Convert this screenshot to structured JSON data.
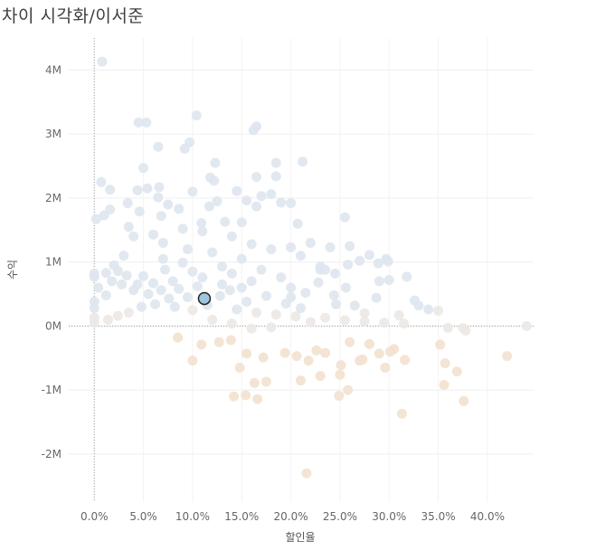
{
  "page": {
    "title": "차이 시각화/이서준"
  },
  "chart_data": {
    "type": "scatter",
    "title": "차이 시각화/이서준",
    "xlabel": "할인율",
    "ylabel": "수익",
    "xlim": [
      -0.026,
      0.447
    ],
    "ylim": [
      -2750000,
      4500000
    ],
    "x_ticks": [
      {
        "value": 0.0,
        "label": "0.0%"
      },
      {
        "value": 0.05,
        "label": "5.0%"
      },
      {
        "value": 0.1,
        "label": "10.0%"
      },
      {
        "value": 0.15,
        "label": "15.0%"
      },
      {
        "value": 0.2,
        "label": "20.0%"
      },
      {
        "value": 0.25,
        "label": "25.0%"
      },
      {
        "value": 0.3,
        "label": "30.0%"
      },
      {
        "value": 0.35,
        "label": "35.0%"
      },
      {
        "value": 0.4,
        "label": "40.0%"
      }
    ],
    "y_ticks": [
      {
        "value": 4000000,
        "label": "4M"
      },
      {
        "value": 3000000,
        "label": "3M"
      },
      {
        "value": 2000000,
        "label": "2M"
      },
      {
        "value": 1000000,
        "label": "1M"
      },
      {
        "value": 0,
        "label": "0M"
      },
      {
        "value": -1000000,
        "label": "-1M"
      },
      {
        "value": -2000000,
        "label": "-2M"
      }
    ],
    "grid": true,
    "reference_lines": {
      "x": 0,
      "y": 0
    },
    "colors": {
      "positive": "#dfe6ee",
      "neutral": "#ece8e4",
      "negative": "#f3e1cf",
      "highlight_fill": "#9fc5df",
      "highlight_stroke": "#222222"
    },
    "highlight": {
      "x": 0.112,
      "y": 430000
    },
    "points": [
      [
        0.008,
        4130000
      ],
      [
        0.104,
        3290000
      ],
      [
        0.045,
        3180000
      ],
      [
        0.053,
        3180000
      ],
      [
        0.165,
        3120000
      ],
      [
        0.162,
        3060000
      ],
      [
        0.097,
        2870000
      ],
      [
        0.065,
        2800000
      ],
      [
        0.092,
        2770000
      ],
      [
        0.212,
        2570000
      ],
      [
        0.123,
        2550000
      ],
      [
        0.185,
        2550000
      ],
      [
        0.05,
        2470000
      ],
      [
        0.118,
        2320000
      ],
      [
        0.165,
        2330000
      ],
      [
        0.185,
        2340000
      ],
      [
        0.122,
        2270000
      ],
      [
        0.007,
        2250000
      ],
      [
        0.016,
        2130000
      ],
      [
        0.044,
        2120000
      ],
      [
        0.054,
        2150000
      ],
      [
        0.066,
        2170000
      ],
      [
        0.1,
        2100000
      ],
      [
        0.145,
        2110000
      ],
      [
        0.17,
        2030000
      ],
      [
        0.18,
        2060000
      ],
      [
        0.065,
        2010000
      ],
      [
        0.034,
        1920000
      ],
      [
        0.075,
        1900000
      ],
      [
        0.125,
        1950000
      ],
      [
        0.155,
        1960000
      ],
      [
        0.19,
        1930000
      ],
      [
        0.2,
        1920000
      ],
      [
        0.01,
        1730000
      ],
      [
        0.016,
        1820000
      ],
      [
        0.046,
        1790000
      ],
      [
        0.086,
        1830000
      ],
      [
        0.117,
        1870000
      ],
      [
        0.165,
        1870000
      ],
      [
        0.035,
        1550000
      ],
      [
        0.002,
        1670000
      ],
      [
        0.068,
        1720000
      ],
      [
        0.255,
        1700000
      ],
      [
        0.207,
        1600000
      ],
      [
        0.109,
        1610000
      ],
      [
        0.133,
        1630000
      ],
      [
        0.15,
        1620000
      ],
      [
        0.24,
        1230000
      ],
      [
        0.26,
        1250000
      ],
      [
        0.28,
        1110000
      ],
      [
        0.297,
        1050000
      ],
      [
        0.27,
        1020000
      ],
      [
        0.299,
        1010000
      ],
      [
        0.258,
        960000
      ],
      [
        0.289,
        980000
      ],
      [
        0.23,
        930000
      ],
      [
        0.235,
        880000
      ],
      [
        0.3,
        720000
      ],
      [
        0.318,
        770000
      ],
      [
        0.29,
        700000
      ],
      [
        0.326,
        400000
      ],
      [
        0.287,
        440000
      ],
      [
        0.244,
        480000
      ],
      [
        0.33,
        320000
      ],
      [
        0.34,
        260000
      ],
      [
        0.35,
        240000
      ],
      [
        0.31,
        170000
      ],
      [
        0.275,
        200000
      ],
      [
        0.256,
        600000
      ],
      [
        0.21,
        1100000
      ],
      [
        0.22,
        1300000
      ],
      [
        0.18,
        1200000
      ],
      [
        0.12,
        1150000
      ],
      [
        0.095,
        1200000
      ],
      [
        0.07,
        1300000
      ],
      [
        0.03,
        1100000
      ],
      [
        0.02,
        950000
      ],
      [
        0.0,
        820000
      ],
      [
        0.0,
        770000
      ],
      [
        0.0,
        380000
      ],
      [
        0.0,
        280000
      ],
      [
        0.0,
        130000
      ],
      [
        0.0,
        50000
      ],
      [
        0.004,
        600000
      ],
      [
        0.012,
        480000
      ],
      [
        0.018,
        700000
      ],
      [
        0.028,
        650000
      ],
      [
        0.04,
        560000
      ],
      [
        0.05,
        780000
      ],
      [
        0.06,
        670000
      ],
      [
        0.072,
        880000
      ],
      [
        0.08,
        700000
      ],
      [
        0.09,
        990000
      ],
      [
        0.1,
        850000
      ],
      [
        0.11,
        760000
      ],
      [
        0.13,
        930000
      ],
      [
        0.14,
        820000
      ],
      [
        0.15,
        1050000
      ],
      [
        0.16,
        700000
      ],
      [
        0.17,
        880000
      ],
      [
        0.19,
        760000
      ],
      [
        0.2,
        600000
      ],
      [
        0.215,
        520000
      ],
      [
        0.228,
        680000
      ],
      [
        0.246,
        340000
      ],
      [
        0.265,
        320000
      ],
      [
        0.195,
        350000
      ],
      [
        0.175,
        470000
      ],
      [
        0.155,
        380000
      ],
      [
        0.138,
        560000
      ],
      [
        0.128,
        470000
      ],
      [
        0.086,
        580000
      ],
      [
        0.076,
        430000
      ],
      [
        0.062,
        340000
      ],
      [
        0.048,
        300000
      ],
      [
        0.035,
        210000
      ],
      [
        0.024,
        160000
      ],
      [
        0.014,
        100000
      ],
      [
        0.082,
        300000
      ],
      [
        0.1,
        250000
      ],
      [
        0.115,
        330000
      ],
      [
        0.145,
        260000
      ],
      [
        0.165,
        210000
      ],
      [
        0.185,
        180000
      ],
      [
        0.205,
        150000
      ],
      [
        0.235,
        130000
      ],
      [
        0.255,
        90000
      ],
      [
        0.275,
        70000
      ],
      [
        0.295,
        50000
      ],
      [
        0.315,
        40000
      ],
      [
        0.36,
        -30000
      ],
      [
        0.375,
        -30000
      ],
      [
        0.378,
        -70000
      ],
      [
        0.44,
        0
      ],
      [
        0.28,
        -280000
      ],
      [
        0.26,
        -250000
      ],
      [
        0.305,
        -360000
      ],
      [
        0.29,
        -430000
      ],
      [
        0.316,
        -530000
      ],
      [
        0.301,
        -400000
      ],
      [
        0.273,
        -520000
      ],
      [
        0.251,
        -610000
      ],
      [
        0.235,
        -420000
      ],
      [
        0.226,
        -380000
      ],
      [
        0.218,
        -540000
      ],
      [
        0.206,
        -470000
      ],
      [
        0.194,
        -420000
      ],
      [
        0.172,
        -490000
      ],
      [
        0.155,
        -430000
      ],
      [
        0.139,
        -220000
      ],
      [
        0.127,
        -250000
      ],
      [
        0.109,
        -290000
      ],
      [
        0.1,
        -540000
      ],
      [
        0.085,
        -180000
      ],
      [
        0.148,
        -650000
      ],
      [
        0.175,
        -870000
      ],
      [
        0.163,
        -890000
      ],
      [
        0.21,
        -850000
      ],
      [
        0.23,
        -780000
      ],
      [
        0.25,
        -760000
      ],
      [
        0.258,
        -1000000
      ],
      [
        0.249,
        -1090000
      ],
      [
        0.166,
        -1140000
      ],
      [
        0.142,
        -1100000
      ],
      [
        0.154,
        -1080000
      ],
      [
        0.27,
        -540000
      ],
      [
        0.296,
        -650000
      ],
      [
        0.357,
        -580000
      ],
      [
        0.356,
        -920000
      ],
      [
        0.369,
        -710000
      ],
      [
        0.376,
        -1170000
      ],
      [
        0.313,
        -1370000
      ],
      [
        0.42,
        -470000
      ],
      [
        0.352,
        -290000
      ],
      [
        0.216,
        -2300000
      ],
      [
        0.07,
        1050000
      ],
      [
        0.04,
        1400000
      ],
      [
        0.06,
        1430000
      ],
      [
        0.09,
        1520000
      ],
      [
        0.11,
        1480000
      ],
      [
        0.14,
        1400000
      ],
      [
        0.16,
        1280000
      ],
      [
        0.2,
        1230000
      ],
      [
        0.23,
        880000
      ],
      [
        0.245,
        820000
      ],
      [
        0.15,
        600000
      ],
      [
        0.13,
        650000
      ],
      [
        0.105,
        620000
      ],
      [
        0.095,
        450000
      ],
      [
        0.068,
        560000
      ],
      [
        0.055,
        500000
      ],
      [
        0.044,
        650000
      ],
      [
        0.033,
        790000
      ],
      [
        0.024,
        860000
      ],
      [
        0.012,
        830000
      ],
      [
        0.2,
        450000
      ],
      [
        0.21,
        280000
      ],
      [
        0.22,
        60000
      ],
      [
        0.16,
        -40000
      ],
      [
        0.18,
        -20000
      ],
      [
        0.14,
        40000
      ],
      [
        0.12,
        100000
      ],
      [
        0.112,
        430000
      ]
    ]
  }
}
